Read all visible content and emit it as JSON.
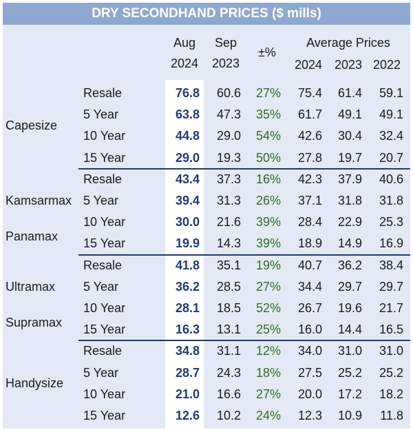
{
  "title": "DRY SECONDHAND PRICES ($ mills)",
  "headers": {
    "aug_month": "Aug",
    "aug_year": "2024",
    "sep_month": "Sep",
    "sep_year": "2023",
    "change": "±%",
    "avg_label": "Average Prices",
    "avg_y1": "2024",
    "avg_y2": "2023",
    "avg_y3": "2022"
  },
  "groups": [
    {
      "name": "Capesize",
      "rows": [
        {
          "age": "Resale",
          "aug": "76.8",
          "sep": "60.6",
          "pct": "27%",
          "a24": "75.4",
          "a23": "61.4",
          "a22": "59.1"
        },
        {
          "age": "5 Year",
          "aug": "63.8",
          "sep": "47.3",
          "pct": "35%",
          "a24": "61.7",
          "a23": "49.1",
          "a22": "49.1"
        },
        {
          "age": "10 Year",
          "aug": "44.8",
          "sep": "29.0",
          "pct": "54%",
          "a24": "42.6",
          "a23": "30.4",
          "a22": "32.4"
        },
        {
          "age": "15 Year",
          "aug": "29.0",
          "sep": "19.3",
          "pct": "50%",
          "a24": "27.8",
          "a23": "19.7",
          "a22": "20.7"
        }
      ]
    },
    {
      "name": "Kamsarmax",
      "name2": "Panamax",
      "rows": [
        {
          "age": "Resale",
          "aug": "43.4",
          "sep": "37.3",
          "pct": "16%",
          "a24": "42.3",
          "a23": "37.9",
          "a22": "40.6"
        },
        {
          "age": "5 Year",
          "aug": "39.4",
          "sep": "31.3",
          "pct": "26%",
          "a24": "37.1",
          "a23": "31.8",
          "a22": "31.8"
        },
        {
          "age": "10 Year",
          "aug": "30.0",
          "sep": "21.6",
          "pct": "39%",
          "a24": "28.4",
          "a23": "22.9",
          "a22": "25.3"
        },
        {
          "age": "15 Year",
          "aug": "19.9",
          "sep": "14.3",
          "pct": "39%",
          "a24": "18.9",
          "a23": "14.9",
          "a22": "16.9"
        }
      ]
    },
    {
      "name": "Ultramax",
      "name2": "Supramax",
      "rows": [
        {
          "age": "Resale",
          "aug": "41.8",
          "sep": "35.1",
          "pct": "19%",
          "a24": "40.7",
          "a23": "36.2",
          "a22": "38.4"
        },
        {
          "age": "5 Year",
          "aug": "36.2",
          "sep": "28.5",
          "pct": "27%",
          "a24": "34.4",
          "a23": "29.7",
          "a22": "29.7"
        },
        {
          "age": "10 Year",
          "aug": "28.1",
          "sep": "18.5",
          "pct": "52%",
          "a24": "26.7",
          "a23": "19.6",
          "a22": "21.7"
        },
        {
          "age": "15 Year",
          "aug": "16.3",
          "sep": "13.1",
          "pct": "25%",
          "a24": "16.0",
          "a23": "14.4",
          "a22": "16.5"
        }
      ]
    },
    {
      "name": "Handysize",
      "rows": [
        {
          "age": "Resale",
          "aug": "34.8",
          "sep": "31.1",
          "pct": "12%",
          "a24": "34.0",
          "a23": "31.0",
          "a22": "31.0"
        },
        {
          "age": "5 Year",
          "aug": "28.7",
          "sep": "24.3",
          "pct": "18%",
          "a24": "27.5",
          "a23": "25.2",
          "a22": "25.2"
        },
        {
          "age": "10 Year",
          "aug": "21.0",
          "sep": "16.6",
          "pct": "27%",
          "a24": "20.0",
          "a23": "17.2",
          "a22": "18.2"
        },
        {
          "age": "15 Year",
          "aug": "12.6",
          "sep": "10.2",
          "pct": "24%",
          "a24": "12.3",
          "a23": "10.9",
          "a22": "11.8"
        }
      ]
    }
  ]
}
